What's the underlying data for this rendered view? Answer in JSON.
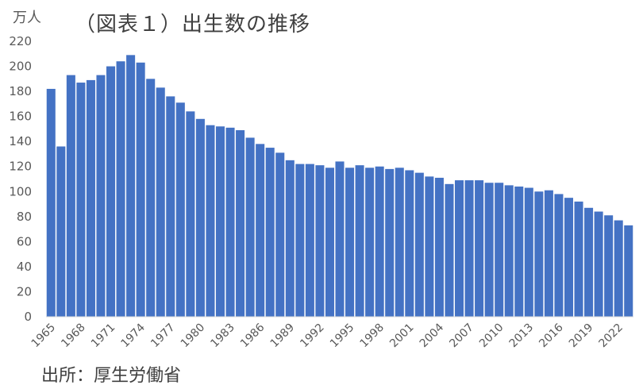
{
  "chart_data": {
    "type": "bar",
    "title": "（図表１）出生数の推移",
    "unit_label": "万人",
    "source": "出所：厚生労働省",
    "ylim": [
      0,
      220
    ],
    "y_ticks": [
      0,
      20,
      40,
      60,
      80,
      100,
      120,
      140,
      160,
      180,
      200,
      220
    ],
    "x_tick_labels": [
      "1965",
      "1968",
      "1971",
      "1974",
      "1977",
      "1980",
      "1983",
      "1986",
      "1989",
      "1992",
      "1995",
      "1998",
      "2001",
      "2004",
      "2007",
      "2010",
      "2013",
      "2016",
      "2019",
      "2022"
    ],
    "categories": [
      1965,
      1966,
      1967,
      1968,
      1969,
      1970,
      1971,
      1972,
      1973,
      1974,
      1975,
      1976,
      1977,
      1978,
      1979,
      1980,
      1981,
      1982,
      1983,
      1984,
      1985,
      1986,
      1987,
      1988,
      1989,
      1990,
      1991,
      1992,
      1993,
      1994,
      1995,
      1996,
      1997,
      1998,
      1999,
      2000,
      2001,
      2002,
      2003,
      2004,
      2005,
      2006,
      2007,
      2008,
      2009,
      2010,
      2011,
      2012,
      2013,
      2014,
      2015,
      2016,
      2017,
      2018,
      2019,
      2020,
      2021,
      2022,
      2023
    ],
    "values": [
      182,
      136,
      193,
      187,
      189,
      193,
      200,
      204,
      209,
      203,
      190,
      183,
      176,
      171,
      164,
      158,
      153,
      152,
      151,
      149,
      143,
      138,
      135,
      131,
      125,
      122,
      122,
      121,
      119,
      124,
      119,
      121,
      119,
      120,
      118,
      119,
      117,
      115,
      112,
      111,
      106,
      109,
      109,
      109,
      107,
      107,
      105,
      104,
      103,
      100,
      101,
      98,
      95,
      92,
      87,
      84,
      81,
      77,
      73
    ],
    "bar_color": "#4472C4",
    "grid": false
  }
}
